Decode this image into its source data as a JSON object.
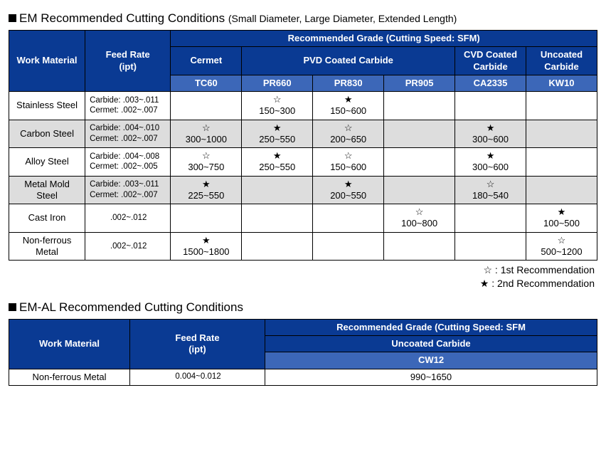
{
  "section1": {
    "title_main": "EM Recommended Cutting Conditions",
    "title_sub": "(Small Diameter, Large Diameter, Extended Length)",
    "header": {
      "work_material": "Work Material",
      "feed_rate_line1": "Feed Rate",
      "feed_rate_line2": "(ipt)",
      "rec_grade": "Recommended Grade (Cutting Speed: SFM)",
      "groups": {
        "cermet": "Cermet",
        "pvd": "PVD Coated Carbide",
        "cvd": "CVD Coated Carbide",
        "uncoated": "Uncoated Carbide"
      },
      "codes": {
        "tc60": "TC60",
        "pr660": "PR660",
        "pr830": "PR830",
        "pr905": "PR905",
        "ca2335": "CA2335",
        "kw10": "KW10"
      }
    },
    "rows": [
      {
        "material": "Stainless Steel",
        "feed_l1": "Carbide: .003~.011",
        "feed_l2": "Cermet: .002~.007",
        "tc60": "",
        "pr660": "☆\n150~300",
        "pr830": "★\n150~600",
        "pr905": "",
        "ca2335": "",
        "kw10": "",
        "shade": "white"
      },
      {
        "material": "Carbon Steel",
        "feed_l1": "Carbide: .004~.010",
        "feed_l2": "Cermet: .002~.007",
        "tc60": "☆\n300~1000",
        "pr660": "★\n250~550",
        "pr830": "☆\n200~650",
        "pr905": "",
        "ca2335": "★\n300~600",
        "kw10": "",
        "shade": "grey"
      },
      {
        "material": "Alloy Steel",
        "feed_l1": "Carbide: .004~.008",
        "feed_l2": "Cermet: .002~.005",
        "tc60": "☆\n300~750",
        "pr660": "★\n250~550",
        "pr830": "☆\n150~600",
        "pr905": "",
        "ca2335": "★\n300~600",
        "kw10": "",
        "shade": "white"
      },
      {
        "material": "Metal Mold Steel",
        "feed_l1": "Carbide: .003~.011",
        "feed_l2": "Cermet: .002~.007",
        "tc60": "★\n225~550",
        "pr660": "",
        "pr830": "★\n200~550",
        "pr905": "",
        "ca2335": "☆\n180~540",
        "kw10": "",
        "shade": "grey"
      },
      {
        "material": "Cast Iron",
        "feed_single": ".002~.012",
        "tc60": "",
        "pr660": "",
        "pr830": "",
        "pr905": "☆\n100~800",
        "ca2335": "",
        "kw10": "★\n100~500",
        "shade": "white"
      },
      {
        "material": "Non-ferrous Metal",
        "feed_single": ".002~.012",
        "tc60": "★\n1500~1800",
        "pr660": "",
        "pr830": "",
        "pr905": "",
        "ca2335": "",
        "kw10": "☆\n500~1200",
        "shade": "white"
      }
    ],
    "legend": {
      "first": "☆ : 1st Recommendation",
      "second": "★ : 2nd Recommendation"
    }
  },
  "section2": {
    "title": "EM-AL Recommended Cutting Conditions",
    "header": {
      "work_material": "Work Material",
      "feed_rate_line1": "Feed Rate",
      "feed_rate_line2": "(ipt)",
      "rec_grade": "Recommended Grade (Cutting Speed: SFM",
      "uncoated": "Uncoated Carbide",
      "code": "CW12"
    },
    "row": {
      "material": "Non-ferrous Metal",
      "feed": "0.004~0.012",
      "value": "990~1650"
    }
  }
}
